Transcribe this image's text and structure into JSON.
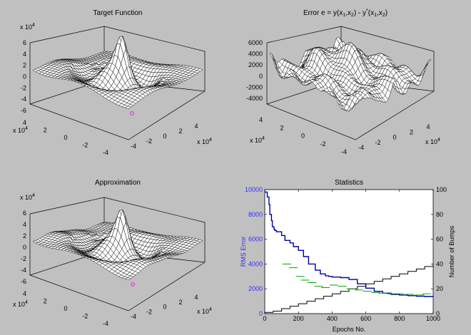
{
  "window": {
    "background": "#c0c0c0"
  },
  "panels": [
    {
      "title": "Target Function",
      "z_exponent": "x 10",
      "z_exp_sup": "4",
      "z_ticks": [
        "6",
        "4",
        "2",
        "0",
        "-2",
        "-4",
        "-6"
      ],
      "x_ticks": [
        "-4",
        "-2",
        "0",
        "2",
        "4"
      ],
      "x_exp": "x 10",
      "x_exp_sup": "4",
      "y_ticks": [
        "4",
        "2",
        "0",
        "-2",
        "-4"
      ],
      "y_exp": "x 10",
      "y_exp_sup": "4"
    },
    {
      "title": "Error  e = y(x",
      "title_full": "Error  e = y(x1,x2) - y*(x1,x2)",
      "z_ticks": [
        "6000",
        "4000",
        "2000",
        "0",
        "-2000",
        "-4000"
      ],
      "x_ticks": [
        "-4",
        "-2",
        "0",
        "2",
        "4"
      ],
      "x_exp": "x 10",
      "x_exp_sup": "4",
      "y_ticks": [
        "4",
        "2",
        "0",
        "-2",
        "-4"
      ],
      "y_exp": "x 10",
      "y_exp_sup": "4"
    },
    {
      "title": "Approximation",
      "z_exponent": "x 10",
      "z_exp_sup": "4",
      "z_ticks": [
        "6",
        "4",
        "2",
        "0",
        "-2",
        "-4",
        "-6"
      ],
      "x_ticks": [
        "-4",
        "-2",
        "0",
        "2",
        "4"
      ],
      "x_exp": "x 10",
      "x_exp_sup": "4",
      "y_ticks": [
        "4",
        "2",
        "0",
        "-2",
        "-4"
      ],
      "y_exp": "x 10",
      "y_exp_sup": "4"
    }
  ],
  "chart_data": [
    {
      "type": "line",
      "title": "Statistics",
      "xlabel": "Epochs No.",
      "ylabel": "RMS Error",
      "ylabel_right": "Number of Bumps",
      "xlim": [
        0,
        1000
      ],
      "ylim": [
        0,
        10000
      ],
      "ylim_right": [
        0,
        100
      ],
      "x_ticks": [
        0,
        200,
        400,
        600,
        800,
        1000
      ],
      "y_ticks": [
        0,
        2000,
        4000,
        6000,
        8000,
        10000
      ],
      "y_ticks_right": [
        0,
        20,
        40,
        60,
        80,
        100
      ],
      "colors": {
        "rms": "#0000a0",
        "bumps": "#000000",
        "test": "#00a000",
        "ylabel": "#3030ff"
      },
      "series": [
        {
          "axis": "left",
          "x": [
            0,
            15,
            25,
            30,
            40,
            45,
            55,
            60,
            70,
            100,
            120,
            150,
            170,
            200,
            230,
            260,
            300,
            330,
            360,
            380,
            400,
            450,
            500,
            550,
            600,
            650,
            700,
            750,
            800,
            850,
            900,
            950,
            1000
          ],
          "values": [
            9800,
            9400,
            8800,
            8000,
            7500,
            7000,
            6800,
            6700,
            6600,
            6300,
            5900,
            5700,
            5400,
            5100,
            4600,
            4000,
            3500,
            3200,
            3050,
            3000,
            2950,
            2900,
            2750,
            2400,
            2050,
            1800,
            1650,
            1550,
            1500,
            1450,
            1400,
            1380,
            1350
          ]
        },
        {
          "axis": "right",
          "x": [
            0,
            50,
            100,
            150,
            200,
            250,
            300,
            350,
            400,
            450,
            500,
            550,
            600,
            650,
            700,
            750,
            800,
            850,
            900,
            950,
            1000
          ],
          "values": [
            1,
            2,
            4,
            6,
            8,
            10,
            12,
            14,
            16,
            18,
            20,
            22,
            24,
            26,
            28,
            30,
            32,
            34,
            36,
            38,
            40
          ]
        },
        {
          "axis": "left",
          "x": [
            130,
            170,
            210,
            240,
            280,
            320,
            360,
            410,
            460,
            510,
            560,
            610,
            660,
            700,
            750,
            800,
            860,
            920,
            960
          ],
          "values": [
            4000,
            3700,
            3000,
            2700,
            2500,
            2200,
            2100,
            2300,
            2200,
            2000,
            1900,
            1800,
            1700,
            1650,
            1600,
            1600,
            1550,
            1500,
            1600
          ]
        }
      ]
    }
  ]
}
